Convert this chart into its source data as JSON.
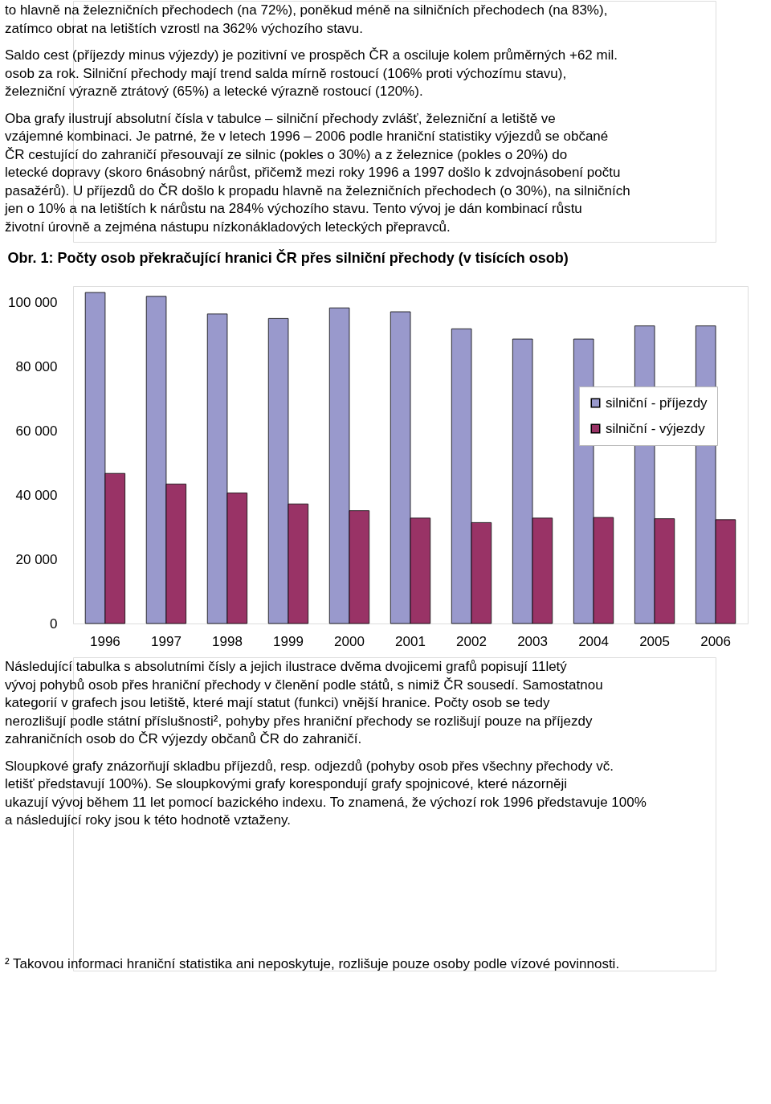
{
  "chart_data": {
    "type": "bar",
    "title": "Obr. 1: Počty osob překračující hranici ČR přes silniční přechody (v tisících osob)",
    "categories": [
      "1996",
      "1997",
      "1998",
      "1999",
      "2000",
      "2001",
      "2002",
      "2003",
      "2004",
      "2005",
      "2006"
    ],
    "series": [
      {
        "name": "silniční - příjezdy",
        "color": "#9999cc",
        "values": [
          103000,
          101800,
          96300,
          94900,
          98200,
          97000,
          91700,
          88500,
          88500,
          92600,
          92600
        ]
      },
      {
        "name": "silniční - výjezdy",
        "color": "#993366",
        "values": [
          46700,
          43400,
          40600,
          37200,
          35100,
          32800,
          31400,
          32800,
          33000,
          32600,
          32300
        ]
      }
    ],
    "ylim": [
      0,
      105000
    ],
    "yticks": [
      0,
      {
        "value": 20000,
        "label": "20 000"
      },
      {
        "value": 40000,
        "label": "40 000"
      },
      {
        "value": 60000,
        "label": "60 000"
      },
      {
        "value": 80000,
        "label": "80 000"
      },
      {
        "value": 100000,
        "label": "100 000"
      }
    ],
    "legend": "right",
    "annotations": [
      "to hlavně na železničních přechodech (na 72%), poněkud méně na silničních přechodech (na 83%), zatímco obrat na letištích vzrostl na 362% výchozího stavu.",
      "Saldo cest (příjezdy minus výjezdy) je pozitivní ve prospěch ČR a osciluje kolem průměrných +62 mil. osob za rok. Silniční přechody mají trend salda mírně rostoucí (106% proti výchozímu stavu), železniční výrazně ztrátový (65%) a letecké výrazně rostoucí (120%).",
      "Oba grafy ilustrují absolutní čísla v tabulce – silniční přechody zvlášť, železniční a letiště ve vzájemné kombinaci. Je patrné, že v letech 1996 – 2006 podle hraniční statistiky výjezdů se občané ČR cestující do zahraničí přesouvají ze silnic (pokles o 30%) a z železnice (pokles o 20%) do letecké dopravy (skoro 6násobný nárůst, přičemž mezi roky 1996 a 1997 došlo k zdvojnásobení počtu pasažérů). U příjezdů do ČR došlo k propadu hlavně na železničních přechodech (o 30%), na silničních jen o 10% a na letištích k nárůstu na 284% výchozího stavu. Tento vývoj je dán kombinací růstu životní úrovně a zejména nástupu nízkonákladových leteckých přepravců.",
      "Následující tabulka s absolutními čísly a jejich ilustrace dvěma dvojicemi grafů popisují 11letý vývoj pohybů osob přes hraniční přechody v členění podle států, s nimiž ČR sousedí. Samostatnou kategorií v grafech jsou letiště, které mají statut (funkci) vnější hranice. Počty osob se tedy nerozlišují podle státní příslušnosti², pohyby přes hraniční přechody se rozlišují pouze na příjezdy zahraničních osob do ČR výjezdy občanů ČR do zahraničí.",
      "Sloupkové grafy znázorňují skladbu příjezdů, resp. odjezdů (pohyby osob přes všechny přechody vč. letišť představují 100%). Se sloupkovými grafy korespondují grafy spojnicové, které názorněji ukazují vývoj během 11 let pomocí bazického indexu. To znamená, že výchozí rok 1996 představuje 100% a následující roky jsou k této hodnotě vztaženy.",
      "² Takovou informaci hraniční statistika ani neposkytuje, rozlišuje pouze osoby podle vízové povinnosti."
    ]
  }
}
